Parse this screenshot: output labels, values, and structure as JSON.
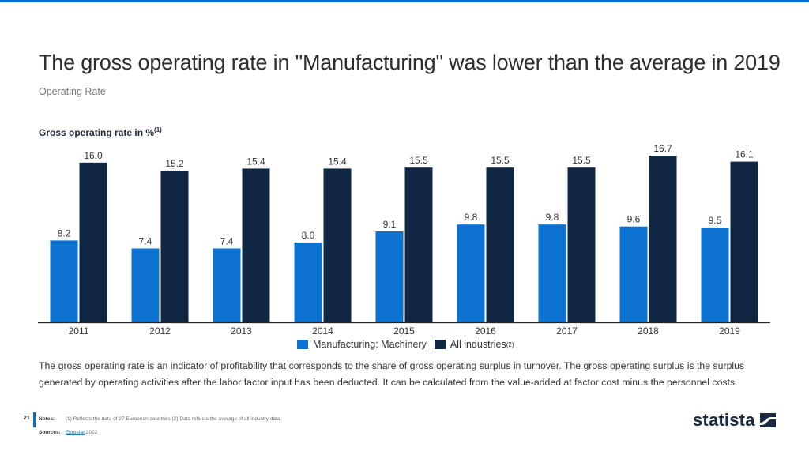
{
  "header": {
    "title": "The gross operating rate in \"Manufacturing\" was lower than the average in 2019",
    "subtitle": "Operating Rate"
  },
  "chart_data": {
    "type": "bar",
    "title": "Gross operating rate in %",
    "title_footnote": "(1)",
    "xlabel": "",
    "ylabel": "Gross operating rate in %",
    "categories": [
      "2011",
      "2012",
      "2013",
      "2014",
      "2015",
      "2016",
      "2017",
      "2018",
      "2019"
    ],
    "series": [
      {
        "name": "Manufacturing: Machinery",
        "footnote": "",
        "color": "#0b72d1",
        "values": [
          8.2,
          7.4,
          7.4,
          8.0,
          9.1,
          9.8,
          9.8,
          9.6,
          9.5
        ]
      },
      {
        "name": "All industries",
        "footnote": "(2)",
        "color": "#0f2742",
        "values": [
          16.0,
          15.2,
          15.4,
          15.4,
          15.5,
          15.5,
          15.5,
          16.7,
          16.1
        ]
      }
    ],
    "ylim": [
      0,
      16.7
    ],
    "grid": false,
    "data_labels": true,
    "legend": "bottom-center"
  },
  "description": "The gross operating rate is an indicator of profitability that corresponds to the share of gross operating surplus in turnover. The gross operating surplus is the surplus generated by operating activities after the labor factor input has been deducted. It can be calculated from the value-added at factor cost minus the personnel costs.",
  "footer": {
    "page_number": "21",
    "notes_label": "Notes:",
    "notes_text": "(1) Reflects the data of 27 European countries (2) Data reflects the average of all industry data.",
    "sources_label": "Sources:",
    "source_link": "Eurostat",
    "source_year": "2022",
    "logo_text": "statista"
  },
  "icons": {
    "logo_mark": "statista-logo-icon"
  }
}
